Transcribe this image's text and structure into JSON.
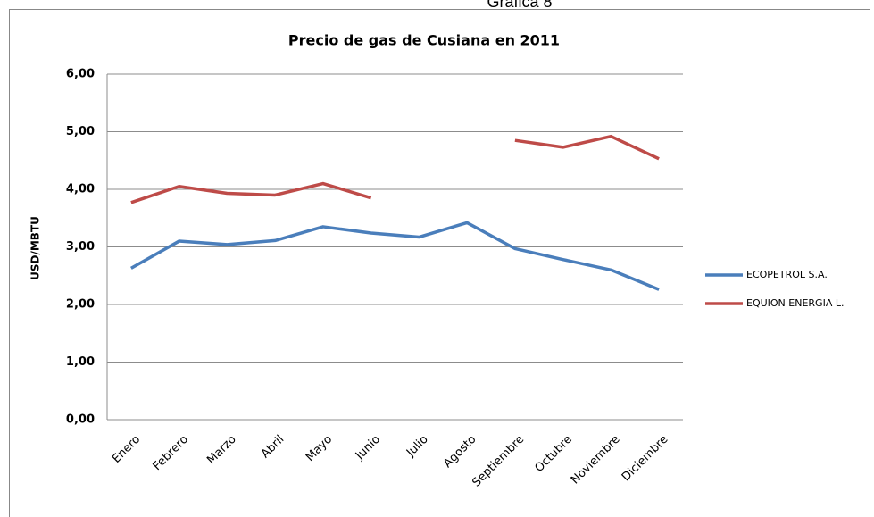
{
  "caption": "Gráfica 8",
  "chart_data": {
    "type": "line",
    "title": "Precio de gas de Cusiana en 2011",
    "y_label": "USD/MBTU",
    "categories": [
      "Enero",
      "Febrero",
      "Marzo",
      "Abril",
      "Mayo",
      "Junio",
      "Julio",
      "Agosto",
      "Septiembre",
      "Octubre",
      "Noviembre",
      "Diciembre"
    ],
    "series": [
      {
        "name": "ECOPETROL S.A.",
        "color": "#4a7ebb",
        "values": [
          2.63,
          3.1,
          3.04,
          3.11,
          3.35,
          3.24,
          3.17,
          3.42,
          2.97,
          2.78,
          2.6,
          2.26
        ]
      },
      {
        "name": "EQUION ENERGIA L.",
        "color": "#be4b48",
        "values": [
          3.77,
          4.05,
          3.93,
          3.9,
          4.1,
          3.85,
          null,
          null,
          4.85,
          4.73,
          4.92,
          4.53
        ]
      }
    ],
    "ylim": [
      0,
      6
    ],
    "yticks": [
      {
        "value": 0,
        "label": "0,00"
      },
      {
        "value": 1,
        "label": "1,00"
      },
      {
        "value": 2,
        "label": "2,00"
      },
      {
        "value": 3,
        "label": "3,00"
      },
      {
        "value": 4,
        "label": "4,00"
      },
      {
        "value": 5,
        "label": "5,00"
      },
      {
        "value": 6,
        "label": "6,00"
      }
    ],
    "grid": true,
    "legend": "right"
  }
}
